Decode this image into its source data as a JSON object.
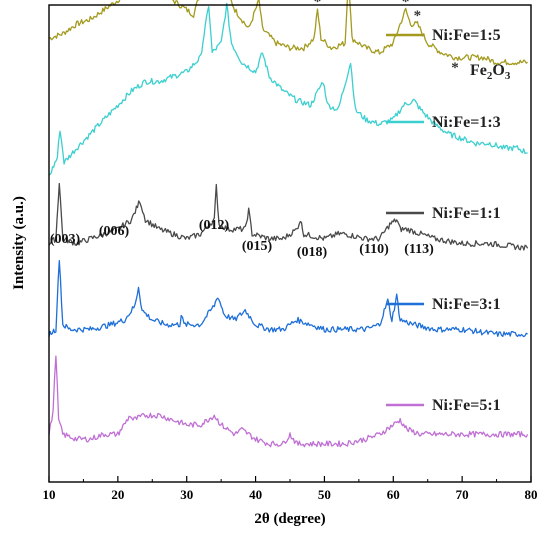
{
  "chart_data": {
    "type": "line",
    "title": "",
    "xlabel": "2θ (degree)",
    "ylabel": "Intensity (a.u.)",
    "xlim": [
      10,
      80
    ],
    "xticks": [
      10,
      20,
      30,
      40,
      50,
      60,
      70,
      80
    ],
    "yticks_shown": false,
    "grid": false,
    "legend_placement": "inline-right",
    "series": [
      {
        "name": "Ni:Fe=1:5",
        "color": "#a39a1e",
        "baseline": 0.87,
        "points": [
          [
            10,
            0.93
          ],
          [
            12,
            0.94
          ],
          [
            14,
            0.96
          ],
          [
            16,
            0.97
          ],
          [
            18,
            0.99
          ],
          [
            20,
            1.01
          ],
          [
            22,
            1.04
          ],
          [
            23.5,
            1.07
          ],
          [
            25,
            1.05
          ],
          [
            27,
            1.02
          ],
          [
            29,
            1.0
          ],
          [
            31,
            0.98
          ],
          [
            32.5,
            1.05
          ],
          [
            32.9,
            1.29
          ],
          [
            33.3,
            1.07
          ],
          [
            34.5,
            1.03
          ],
          [
            35.3,
            1.17
          ],
          [
            35.8,
            1.03
          ],
          [
            37,
            0.99
          ],
          [
            39,
            0.95
          ],
          [
            40.5,
            1.01
          ],
          [
            41,
            0.95
          ],
          [
            43,
            0.92
          ],
          [
            45,
            0.91
          ],
          [
            47,
            0.91
          ],
          [
            48.5,
            0.93
          ],
          [
            49,
            0.99
          ],
          [
            49.5,
            0.93
          ],
          [
            51,
            0.91
          ],
          [
            53,
            0.92
          ],
          [
            53.5,
            1.06
          ],
          [
            54,
            0.93
          ],
          [
            56,
            0.91
          ],
          [
            58,
            0.9
          ],
          [
            60,
            0.92
          ],
          [
            61,
            0.96
          ],
          [
            61.8,
            0.99
          ],
          [
            62.5,
            0.96
          ],
          [
            63.5,
            0.96
          ],
          [
            65,
            0.92
          ],
          [
            67,
            0.9
          ],
          [
            69,
            0.89
          ],
          [
            71,
            0.89
          ],
          [
            73,
            0.89
          ],
          [
            75,
            0.88
          ],
          [
            77,
            0.88
          ],
          [
            79.5,
            0.88
          ]
        ],
        "phase_markers_x": [
          32.9,
          35.3,
          40.5,
          49.0,
          53.5,
          61.8,
          63.5
        ]
      },
      {
        "name": "Ni:Fe=1:3",
        "color": "#3ccfcf",
        "baseline": 0.68,
        "points": [
          [
            10,
            0.64
          ],
          [
            11.2,
            0.68
          ],
          [
            11.6,
            0.74
          ],
          [
            12.2,
            0.67
          ],
          [
            14,
            0.7
          ],
          [
            16,
            0.73
          ],
          [
            18,
            0.76
          ],
          [
            20,
            0.79
          ],
          [
            22,
            0.82
          ],
          [
            24,
            0.84
          ],
          [
            26,
            0.84
          ],
          [
            28,
            0.85
          ],
          [
            30,
            0.86
          ],
          [
            32,
            0.89
          ],
          [
            33.2,
            1.0
          ],
          [
            33.7,
            0.9
          ],
          [
            35,
            0.92
          ],
          [
            35.8,
            1.0
          ],
          [
            36.5,
            0.92
          ],
          [
            38,
            0.88
          ],
          [
            40,
            0.86
          ],
          [
            41,
            0.9
          ],
          [
            42,
            0.85
          ],
          [
            44,
            0.82
          ],
          [
            46,
            0.8
          ],
          [
            48,
            0.79
          ],
          [
            49.8,
            0.84
          ],
          [
            50.5,
            0.79
          ],
          [
            52,
            0.78
          ],
          [
            53.8,
            0.88
          ],
          [
            54.5,
            0.78
          ],
          [
            56,
            0.76
          ],
          [
            58,
            0.75
          ],
          [
            60,
            0.76
          ],
          [
            61.5,
            0.79
          ],
          [
            63,
            0.8
          ],
          [
            64,
            0.78
          ],
          [
            66,
            0.75
          ],
          [
            68,
            0.73
          ],
          [
            70,
            0.72
          ],
          [
            72,
            0.71
          ],
          [
            74,
            0.71
          ],
          [
            76,
            0.7
          ],
          [
            78,
            0.7
          ],
          [
            79.5,
            0.69
          ]
        ]
      },
      {
        "name": "Ni:Fe=1:1",
        "color": "#4a4a4a",
        "baseline": 0.5,
        "points": [
          [
            10,
            0.5
          ],
          [
            11,
            0.51
          ],
          [
            11.5,
            0.63
          ],
          [
            12,
            0.51
          ],
          [
            14,
            0.5
          ],
          [
            16,
            0.51
          ],
          [
            18,
            0.52
          ],
          [
            20,
            0.53
          ],
          [
            22,
            0.55
          ],
          [
            23.2,
            0.59
          ],
          [
            24,
            0.55
          ],
          [
            26,
            0.53
          ],
          [
            28,
            0.52
          ],
          [
            30,
            0.51
          ],
          [
            32,
            0.52
          ],
          [
            34,
            0.55
          ],
          [
            34.3,
            0.62
          ],
          [
            34.7,
            0.54
          ],
          [
            36,
            0.53
          ],
          [
            38.5,
            0.53
          ],
          [
            39,
            0.57
          ],
          [
            39.5,
            0.52
          ],
          [
            42,
            0.51
          ],
          [
            44,
            0.51
          ],
          [
            46,
            0.53
          ],
          [
            46.5,
            0.55
          ],
          [
            47,
            0.52
          ],
          [
            50,
            0.51
          ],
          [
            52,
            0.52
          ],
          [
            53,
            0.52
          ],
          [
            56,
            0.51
          ],
          [
            58,
            0.51
          ],
          [
            59.5,
            0.54
          ],
          [
            60.5,
            0.55
          ],
          [
            61,
            0.53
          ],
          [
            62,
            0.53
          ],
          [
            64,
            0.52
          ],
          [
            66,
            0.51
          ],
          [
            70,
            0.5
          ],
          [
            74,
            0.5
          ],
          [
            79.5,
            0.49
          ]
        ],
        "reflections": [
          {
            "label": "(003)",
            "x": 11.5
          },
          {
            "label": "(006)",
            "x": 23.2
          },
          {
            "label": "(012)",
            "x": 34.3
          },
          {
            "label": "(015)",
            "x": 39.0
          },
          {
            "label": "(018)",
            "x": 46.5
          },
          {
            "label": "(110)",
            "x": 59.5
          },
          {
            "label": "(113)",
            "x": 60.8
          }
        ]
      },
      {
        "name": "Ni:Fe=3:1",
        "color": "#1e6fd8",
        "baseline": 0.31,
        "points": [
          [
            10,
            0.31
          ],
          [
            11,
            0.32
          ],
          [
            11.5,
            0.47
          ],
          [
            12,
            0.33
          ],
          [
            13,
            0.32
          ],
          [
            16,
            0.32
          ],
          [
            19,
            0.33
          ],
          [
            21,
            0.34
          ],
          [
            22.5,
            0.37
          ],
          [
            23,
            0.41
          ],
          [
            23.5,
            0.36
          ],
          [
            25,
            0.34
          ],
          [
            27,
            0.33
          ],
          [
            29,
            0.33
          ],
          [
            29.2,
            0.35
          ],
          [
            29.6,
            0.33
          ],
          [
            32,
            0.33
          ],
          [
            34,
            0.37
          ],
          [
            34.5,
            0.39
          ],
          [
            35.5,
            0.35
          ],
          [
            37,
            0.34
          ],
          [
            38.5,
            0.36
          ],
          [
            40,
            0.33
          ],
          [
            42,
            0.32
          ],
          [
            44,
            0.32
          ],
          [
            46,
            0.34
          ],
          [
            48,
            0.33
          ],
          [
            50,
            0.32
          ],
          [
            53,
            0.32
          ],
          [
            56,
            0.32
          ],
          [
            58,
            0.33
          ],
          [
            59.2,
            0.38
          ],
          [
            59.8,
            0.34
          ],
          [
            60.5,
            0.39
          ],
          [
            61,
            0.34
          ],
          [
            63,
            0.33
          ],
          [
            66,
            0.32
          ],
          [
            70,
            0.32
          ],
          [
            75,
            0.31
          ],
          [
            79.5,
            0.31
          ]
        ]
      },
      {
        "name": "Ni:Fe=5:1",
        "color": "#c070d4",
        "baseline": 0.09,
        "points": [
          [
            10,
            0.1
          ],
          [
            10.6,
            0.15
          ],
          [
            11,
            0.27
          ],
          [
            11.4,
            0.13
          ],
          [
            12,
            0.1
          ],
          [
            14,
            0.09
          ],
          [
            16,
            0.09
          ],
          [
            18,
            0.1
          ],
          [
            20,
            0.1
          ],
          [
            21.8,
            0.14
          ],
          [
            22.2,
            0.13
          ],
          [
            24,
            0.14
          ],
          [
            26,
            0.14
          ],
          [
            28,
            0.13
          ],
          [
            30,
            0.12
          ],
          [
            32,
            0.12
          ],
          [
            33,
            0.13
          ],
          [
            34,
            0.14
          ],
          [
            35,
            0.12
          ],
          [
            37,
            0.1
          ],
          [
            38,
            0.11
          ],
          [
            40,
            0.09
          ],
          [
            42,
            0.08
          ],
          [
            44,
            0.08
          ],
          [
            45,
            0.1
          ],
          [
            46,
            0.08
          ],
          [
            48,
            0.08
          ],
          [
            50,
            0.08
          ],
          [
            53,
            0.08
          ],
          [
            56,
            0.09
          ],
          [
            58,
            0.1
          ],
          [
            60,
            0.12
          ],
          [
            61,
            0.13
          ],
          [
            62,
            0.11
          ],
          [
            64,
            0.1
          ],
          [
            66,
            0.1
          ],
          [
            70,
            0.1
          ],
          [
            74,
            0.1
          ],
          [
            79.5,
            0.1
          ]
        ]
      }
    ],
    "annotations": {
      "phase_marker_symbol": "*",
      "phase_legend_text": "Fe",
      "phase_legend_sub": "2",
      "phase_legend_after": "O",
      "phase_legend_sub2": "3"
    }
  }
}
